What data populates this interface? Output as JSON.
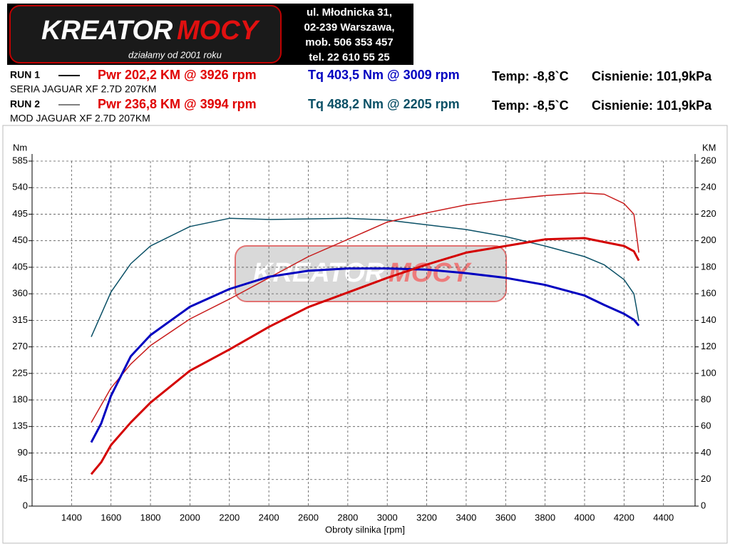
{
  "header": {
    "logo_left": "KREATOR",
    "logo_right": "MOCY",
    "tagline": "działamy od 2001 roku",
    "address": [
      "ul. Młodnicka 31,",
      "02-239  Warszawa,",
      "mob.  506 353 457",
      "tel.  22 610 55 25"
    ]
  },
  "runs": [
    {
      "label": "RUN 1",
      "pwr": "Pwr  202,2 KM @ 3926 rpm",
      "tq": "Tq 403,5 Nm @ 3009 rpm",
      "temp": "Temp: -8,8`C",
      "pressure": "Cisnienie: 101,9kPa",
      "desc": "SERIA JAGUAR XF 2.7D 207KM"
    },
    {
      "label": "RUN 2",
      "pwr": "Pwr  236,8 KM @ 3994 rpm",
      "tq": "Tq 488,2 Nm @ 2205 rpm",
      "temp": "Temp: -8,5`C",
      "pressure": "Cisnienie: 101,9kPa",
      "desc": "MOD JAGUAR XF 2.7D 207KM"
    }
  ],
  "chart_data": {
    "type": "line",
    "y_label": "Nm",
    "y2_label": "KM",
    "x_label": "Obroty silnika [rpm]",
    "x": [
      1500,
      1550,
      1600,
      1700,
      1800,
      2000,
      2200,
      2400,
      2600,
      2800,
      3000,
      3200,
      3400,
      3600,
      3800,
      4000,
      4100,
      4200,
      4250,
      4275
    ],
    "xlim": [
      1200,
      4560
    ],
    "xticks": [
      1400,
      1600,
      1800,
      2000,
      2200,
      2400,
      2600,
      2800,
      3000,
      3200,
      3400,
      3600,
      3800,
      4000,
      4200,
      4400
    ],
    "ylim": [
      0,
      585
    ],
    "yticks": [
      0,
      45,
      90,
      135,
      180,
      225,
      270,
      315,
      360,
      405,
      450,
      495,
      540,
      585
    ],
    "y2lim": [
      0,
      260
    ],
    "y2ticks": [
      0,
      20,
      40,
      60,
      80,
      100,
      120,
      140,
      160,
      180,
      200,
      220,
      240,
      260
    ],
    "grid": true,
    "series": [
      {
        "color": "#0a5066",
        "width": 1.5,
        "axis": "y",
        "values": [
          287,
          325,
          363,
          411,
          441,
          474,
          488,
          486,
          487,
          488,
          485,
          477,
          469,
          457,
          441,
          423,
          409,
          384,
          360,
          314
        ]
      },
      {
        "color": "#c81c1c",
        "width": 1.5,
        "axis": "y2",
        "values": [
          63,
          76,
          89,
          107,
          121,
          141,
          156,
          172,
          188,
          201,
          214,
          221,
          227,
          231,
          234,
          236,
          235,
          228,
          220,
          191
        ]
      },
      {
        "color": "#0000c0",
        "width": 3,
        "axis": "y",
        "values": [
          108,
          140,
          187,
          254,
          290,
          338,
          368,
          389,
          399,
          403,
          403,
          401,
          395,
          387,
          375,
          357,
          341,
          326,
          316,
          306
        ]
      },
      {
        "color": "#d40000",
        "width": 3,
        "axis": "y2",
        "values": [
          24,
          33,
          46,
          63,
          78,
          102,
          118,
          135,
          150,
          161,
          172,
          182,
          191,
          196,
          201,
          202,
          199,
          196,
          192,
          185
        ]
      }
    ]
  }
}
